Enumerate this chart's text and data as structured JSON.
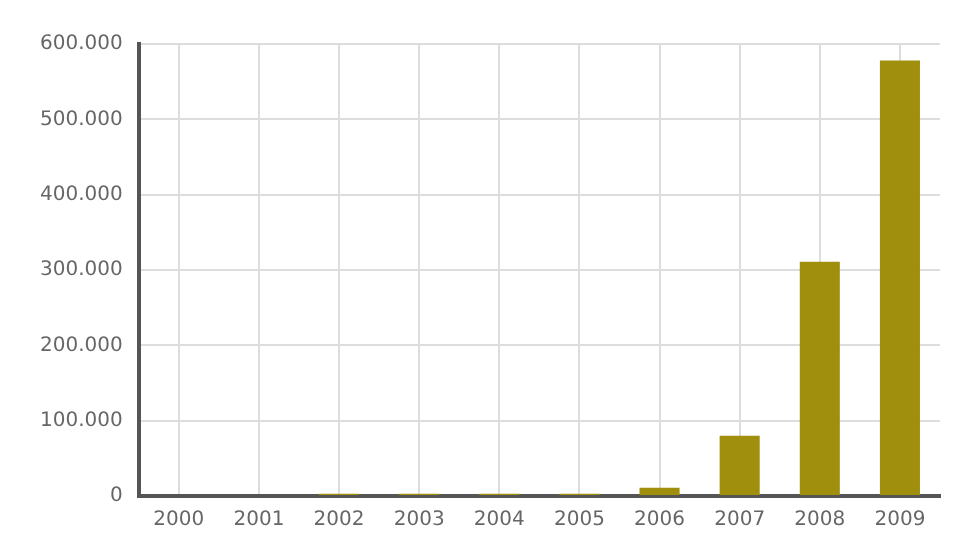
{
  "chart_data": {
    "type": "bar",
    "categories": [
      "2000",
      "2001",
      "2002",
      "2003",
      "2004",
      "2005",
      "2006",
      "2007",
      "2008",
      "2009"
    ],
    "values": [
      0,
      0,
      3000,
      3000,
      3000,
      3000,
      11000,
      80000,
      311000,
      578000
    ],
    "color": "#a08f0c",
    "ylim": [
      0,
      600000
    ],
    "yticks": [
      {
        "value": 0,
        "label": "0"
      },
      {
        "value": 100000,
        "label": "100.000"
      },
      {
        "value": 200000,
        "label": "200.000"
      },
      {
        "value": 300000,
        "label": "300.000"
      },
      {
        "value": 400000,
        "label": "400.000"
      },
      {
        "value": 500000,
        "label": "500.000"
      },
      {
        "value": 600000,
        "label": "600.000"
      }
    ],
    "grid": true
  }
}
